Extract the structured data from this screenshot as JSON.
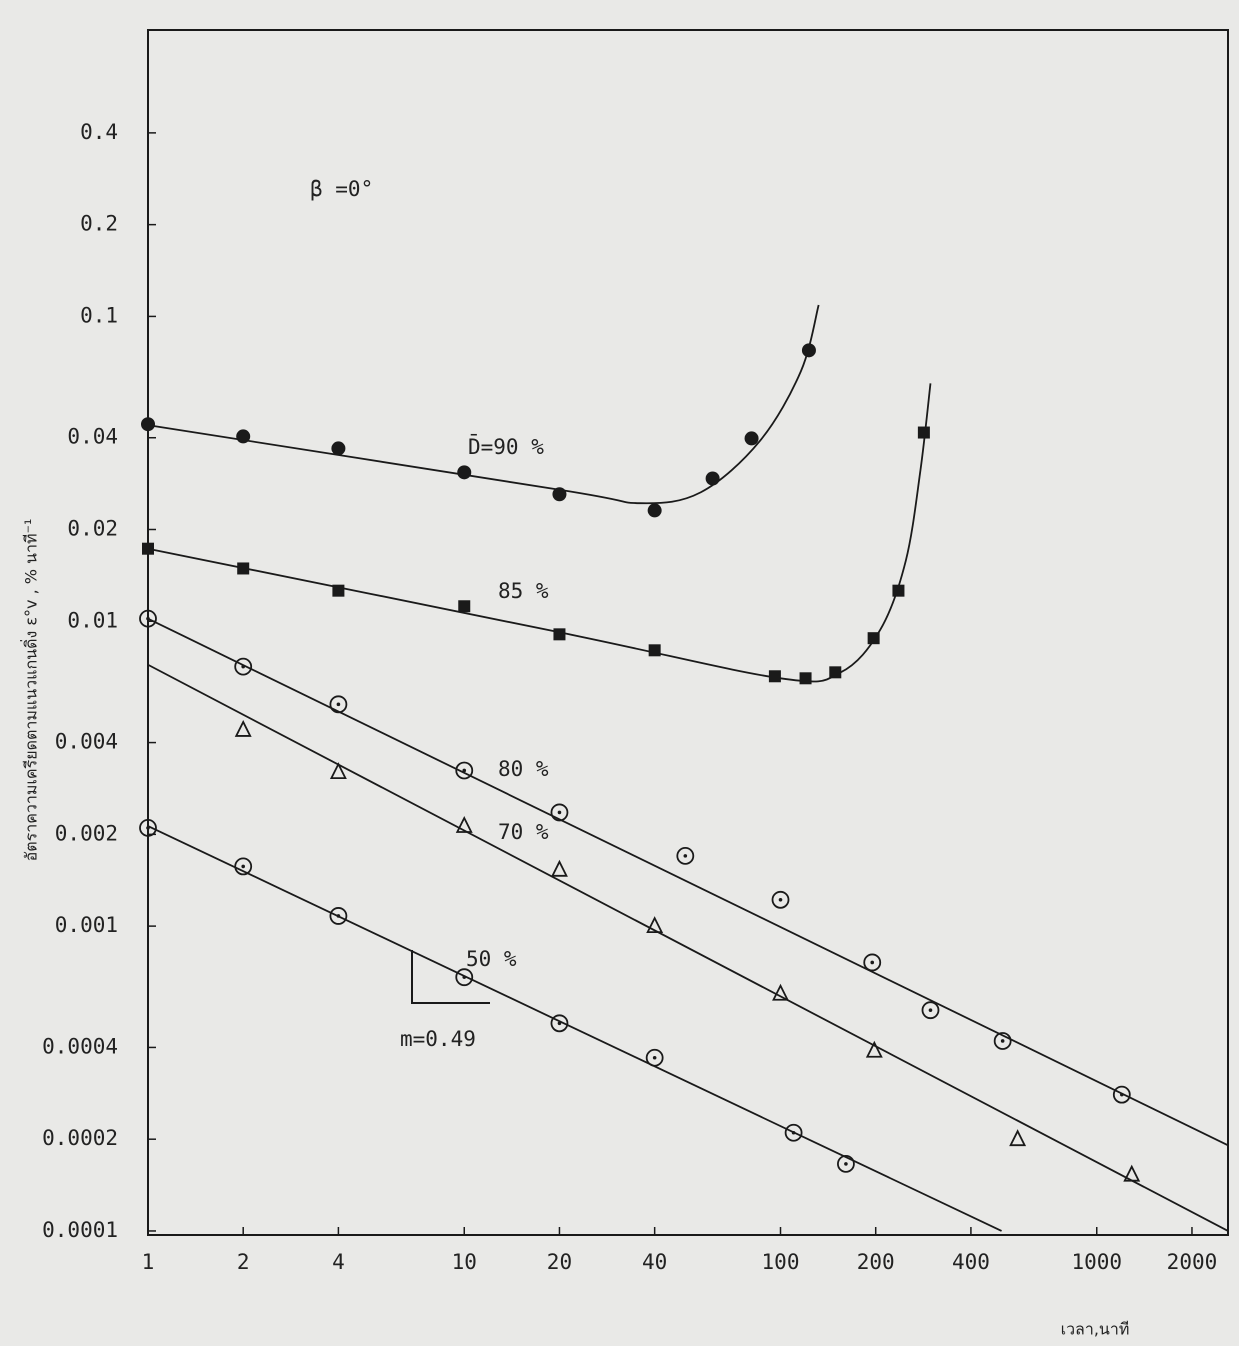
{
  "chart_data": {
    "type": "scatter",
    "xlog": true,
    "ylog": true,
    "xlabel": "เวลา,นาที",
    "ylabel": "อัตราความเครียดตามแนวแกนดิ่ง  ε°v , % นาที⁻¹",
    "annotations": [
      "β =0°",
      "m=0.49"
    ],
    "xlim": [
      1,
      2600
    ],
    "ylim": [
      9.7e-05,
      0.87
    ],
    "xticks": [
      1,
      2,
      4,
      10,
      20,
      40,
      100,
      200,
      400,
      1000,
      2000
    ],
    "yticks": [
      0.0001,
      0.0002,
      0.0004,
      0.001,
      0.002,
      0.004,
      0.01,
      0.02,
      0.04,
      0.1,
      0.2,
      0.4
    ],
    "color": "#1a1a1a",
    "series": [
      {
        "name": "D̄=90 %",
        "marker": "filled-circle",
        "x": [
          1,
          2,
          4,
          10,
          20,
          40,
          61,
          81,
          123
        ],
        "values": [
          0.0443,
          0.0404,
          0.0369,
          0.0308,
          0.0261,
          0.0231,
          0.0294,
          0.0398,
          0.0774
        ],
        "fit": {
          "x": [
            1,
            20,
            36,
            56,
            86,
            116,
            132
          ],
          "values": [
            0.044,
            0.027,
            0.0244,
            0.0265,
            0.039,
            0.0661,
            0.109
          ]
        }
      },
      {
        "name": "85 %",
        "marker": "filled-square",
        "x": [
          1,
          2,
          4,
          10,
          20,
          40,
          96,
          120,
          149,
          197,
          236,
          284
        ],
        "values": [
          0.0173,
          0.0149,
          0.0126,
          0.0112,
          0.00906,
          0.00803,
          0.0066,
          0.0065,
          0.0068,
          0.0088,
          0.0126,
          0.0416
        ],
        "fit": {
          "x": [
            1,
            20,
            100,
            155,
            207,
            249,
            277,
            298
          ],
          "values": [
            0.0173,
            0.0092,
            0.0065,
            0.0068,
            0.0094,
            0.0158,
            0.0313,
            0.0603
          ]
        }
      },
      {
        "name": "80 %",
        "marker": "dotted-circle",
        "x": [
          1,
          2,
          4,
          10,
          20,
          50,
          100,
          195,
          298,
          504,
          1200
        ],
        "values": [
          0.0102,
          0.0071,
          0.00534,
          0.00324,
          0.00236,
          0.0017,
          0.00122,
          0.00076,
          0.00053,
          0.00042,
          0.00028
        ],
        "fit": {
          "x": [
            1,
            2600
          ],
          "values": [
            0.0102,
            0.000191
          ]
        }
      },
      {
        "name": "70 %",
        "marker": "triangle",
        "x": [
          2,
          4,
          10,
          20,
          40,
          100,
          198,
          562,
          1290
        ],
        "values": [
          0.0044,
          0.0032,
          0.00213,
          0.00153,
          0.001,
          0.0006,
          0.00039,
          0.0002,
          0.000153
        ],
        "fit": {
          "x": [
            1,
            2600
          ],
          "values": [
            0.0072,
            0.0001
          ]
        }
      },
      {
        "name": "50 %",
        "marker": "dotted-circle",
        "x": [
          1,
          2,
          4,
          10,
          20,
          40,
          110,
          161
        ],
        "values": [
          0.0021,
          0.00157,
          0.00108,
          0.00068,
          0.00048,
          0.00037,
          0.00021,
          0.000166
        ],
        "fit": {
          "x": [
            1,
            500
          ],
          "values": [
            0.00213,
            0.0001
          ]
        }
      }
    ]
  }
}
